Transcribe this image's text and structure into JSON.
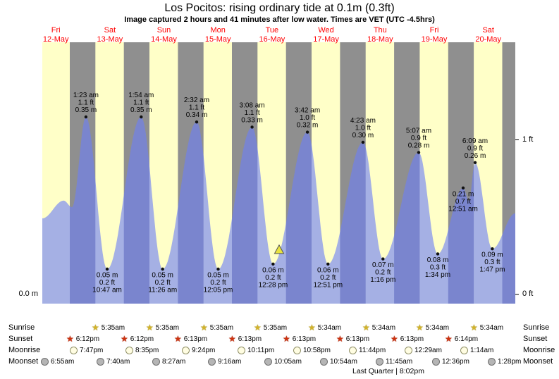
{
  "title": "Los Pocitos: rising  ordinary tide at 0.1m (0.3ft)",
  "subtitle": "Image captured 2 hours and 41 minutes after low water. Times are VET (UTC -4.5hrs)",
  "axis": {
    "left_zero_label": "0.0 m",
    "right_one_ft_label": "1 ft",
    "right_zero_ft_label": "0 ft"
  },
  "days": [
    {
      "name": "Fri",
      "date": "12-May"
    },
    {
      "name": "Sat",
      "date": "13-May"
    },
    {
      "name": "Sun",
      "date": "14-May"
    },
    {
      "name": "Mon",
      "date": "15-May"
    },
    {
      "name": "Tue",
      "date": "16-May"
    },
    {
      "name": "Wed",
      "date": "17-May"
    },
    {
      "name": "Thu",
      "date": "18-May"
    },
    {
      "name": "Fri",
      "date": "19-May"
    },
    {
      "name": "Sat",
      "date": "20-May"
    }
  ],
  "chart_data": {
    "type": "area",
    "title": "Los Pocitos tide height curve",
    "x_axis_days": [
      "Fri 12-May",
      "Sat 13-May",
      "Sun 14-May",
      "Mon 15-May",
      "Tue 16-May",
      "Wed 17-May",
      "Thu 18-May",
      "Fri 19-May",
      "Sat 20-May"
    ],
    "x_domain_hours": [
      6,
      216
    ],
    "y_domain_m": [
      0,
      0.5
    ],
    "y_ticks": [
      {
        "label": "1 ft",
        "m": 0.3048
      },
      {
        "label": "0 ft",
        "m": 0
      }
    ],
    "night_model": {
      "sunset_hour": 18.2,
      "sunrise_hour": 5.57
    },
    "tide_events": [
      {
        "day": "Sat 13-May",
        "kind": "high",
        "t": 25.383,
        "height_m": 0.35,
        "label_lines": [
          "1:23 am",
          "1.1 ft",
          "0.35 m"
        ],
        "label_pos": "above"
      },
      {
        "day": "Sat 13-May",
        "kind": "low",
        "t": 34.783,
        "height_m": 0.05,
        "label_lines": [
          "0.05 m",
          "0.2 ft",
          "10:47 am"
        ],
        "label_pos": "below"
      },
      {
        "day": "Sun 14-May",
        "kind": "high",
        "t": 49.9,
        "height_m": 0.35,
        "label_lines": [
          "1:54 am",
          "1.1 ft",
          "0.35 m"
        ],
        "label_pos": "above"
      },
      {
        "day": "Sun 14-May",
        "kind": "low",
        "t": 59.433,
        "height_m": 0.05,
        "label_lines": [
          "0.05 m",
          "0.2 ft",
          "11:26 am"
        ],
        "label_pos": "below"
      },
      {
        "day": "Mon 15-May",
        "kind": "high",
        "t": 74.533,
        "height_m": 0.34,
        "label_lines": [
          "2:32 am",
          "1.1 ft",
          "0.34 m"
        ],
        "label_pos": "above"
      },
      {
        "day": "Mon 15-May",
        "kind": "low",
        "t": 84.083,
        "height_m": 0.05,
        "label_lines": [
          "0.05 m",
          "0.2 ft",
          "12:05 pm"
        ],
        "label_pos": "below"
      },
      {
        "day": "Tue 16-May",
        "kind": "high",
        "t": 99.133,
        "height_m": 0.33,
        "label_lines": [
          "3:08 am",
          "1.1 ft",
          "0.33 m"
        ],
        "label_pos": "above"
      },
      {
        "day": "Tue 16-May",
        "kind": "low",
        "t": 108.467,
        "height_m": 0.06,
        "label_lines": [
          "0.06 m",
          "0.2 ft",
          "12:28 pm"
        ],
        "label_pos": "below"
      },
      {
        "day": "Wed 17-May",
        "kind": "high",
        "t": 123.7,
        "height_m": 0.32,
        "label_lines": [
          "3:42 am",
          "1.0 ft",
          "0.32 m"
        ],
        "label_pos": "above"
      },
      {
        "day": "Wed 17-May",
        "kind": "low",
        "t": 132.85,
        "height_m": 0.06,
        "label_lines": [
          "0.06 m",
          "0.2 ft",
          "12:51 pm"
        ],
        "label_pos": "below"
      },
      {
        "day": "Thu 18-May",
        "kind": "high",
        "t": 148.383,
        "height_m": 0.3,
        "label_lines": [
          "4:23 am",
          "1.0 ft",
          "0.30 m"
        ],
        "label_pos": "above"
      },
      {
        "day": "Thu 18-May",
        "kind": "low",
        "t": 157.267,
        "height_m": 0.07,
        "label_lines": [
          "0.07 m",
          "0.2 ft",
          "1:16 pm"
        ],
        "label_pos": "below"
      },
      {
        "day": "Fri 19-May",
        "kind": "high",
        "t": 173.117,
        "height_m": 0.28,
        "label_lines": [
          "5:07 am",
          "0.9 ft",
          "0.28 m"
        ],
        "label_pos": "above"
      },
      {
        "day": "Fri 19-May",
        "kind": "low",
        "t": 181.567,
        "height_m": 0.08,
        "label_lines": [
          "0.08 m",
          "0.3 ft",
          "1:34 pm"
        ],
        "label_pos": "below"
      },
      {
        "day": "Sat 20-May",
        "kind": "high",
        "t": 192.85,
        "height_m": 0.21,
        "label_lines": [
          "0.21 m",
          "0.7 ft",
          "12:51 am"
        ],
        "label_pos": "below"
      },
      {
        "day": "Sat 20-May",
        "kind": "high",
        "t": 198.15,
        "height_m": 0.26,
        "label_lines": [
          "6:09 am",
          "0.9 ft",
          "0.26 m"
        ],
        "label_pos": "above"
      },
      {
        "day": "Sat 20-May",
        "kind": "low",
        "t": 205.783,
        "height_m": 0.09,
        "label_lines": [
          "0.09 m",
          "0.3 ft",
          "1:47 pm"
        ],
        "label_pos": "below"
      }
    ],
    "curve_extremes": [
      {
        "t": 6,
        "h": 0.15
      },
      {
        "t": 15.5,
        "h": 0.185
      },
      {
        "t": 19.2,
        "h": 0.172
      },
      {
        "t": 25.383,
        "h": 0.35
      },
      {
        "t": 34.783,
        "h": 0.05
      },
      {
        "t": 49.9,
        "h": 0.35
      },
      {
        "t": 59.433,
        "h": 0.05
      },
      {
        "t": 74.533,
        "h": 0.34
      },
      {
        "t": 84.083,
        "h": 0.05
      },
      {
        "t": 99.133,
        "h": 0.33
      },
      {
        "t": 108.467,
        "h": 0.06
      },
      {
        "t": 123.7,
        "h": 0.32
      },
      {
        "t": 132.85,
        "h": 0.06
      },
      {
        "t": 148.383,
        "h": 0.3
      },
      {
        "t": 157.267,
        "h": 0.07
      },
      {
        "t": 173.117,
        "h": 0.28
      },
      {
        "t": 181.567,
        "h": 0.08
      },
      {
        "t": 192.85,
        "h": 0.21
      },
      {
        "t": 195.4,
        "h": 0.185
      },
      {
        "t": 198.15,
        "h": 0.26
      },
      {
        "t": 205.783,
        "h": 0.09
      },
      {
        "t": 216,
        "h": 0.16
      }
    ],
    "time_marker": {
      "t": 111.15,
      "shape": "triangle-up",
      "meaning": "time of image capture (2h 41m after low water)"
    }
  },
  "astro": {
    "left_labels": [
      "Sunrise",
      "Sunset",
      "Moonrise",
      "Moonset"
    ],
    "right_labels": [
      "Sunrise",
      "Sunset",
      "Moonrise",
      "Moonset"
    ],
    "sunrise": {
      "icon": "sunrise-star",
      "events": [
        {
          "time": "5:35am",
          "t": 29.583
        },
        {
          "time": "5:35am",
          "t": 53.583
        },
        {
          "time": "5:35am",
          "t": 77.583
        },
        {
          "time": "5:35am",
          "t": 101.583
        },
        {
          "time": "5:34am",
          "t": 125.567
        },
        {
          "time": "5:34am",
          "t": 149.567
        },
        {
          "time": "5:34am",
          "t": 173.567
        },
        {
          "time": "5:34am",
          "t": 197.567
        }
      ]
    },
    "sunset": {
      "icon": "sunset-star",
      "events": [
        {
          "time": "6:12pm",
          "t": 18.2
        },
        {
          "time": "6:12pm",
          "t": 42.2
        },
        {
          "time": "6:13pm",
          "t": 66.217
        },
        {
          "time": "6:13pm",
          "t": 90.217
        },
        {
          "time": "6:13pm",
          "t": 114.217
        },
        {
          "time": "6:13pm",
          "t": 138.217
        },
        {
          "time": "6:13pm",
          "t": 162.217
        },
        {
          "time": "6:14pm",
          "t": 186.233
        }
      ]
    },
    "moonrise": {
      "icon": "moonrise-circle",
      "events": [
        {
          "time": "7:47pm",
          "t": 19.783
        },
        {
          "time": "8:35pm",
          "t": 44.583
        },
        {
          "time": "9:24pm",
          "t": 69.4
        },
        {
          "time": "10:11pm",
          "t": 94.183
        },
        {
          "time": "10:58pm",
          "t": 118.967
        },
        {
          "time": "11:44pm",
          "t": 143.733
        },
        {
          "time": "12:29am",
          "t": 168.483
        },
        {
          "time": "1:14am",
          "t": 193.233
        }
      ]
    },
    "moonset": {
      "icon": "moonset-circle",
      "events": [
        {
          "time": "6:55am",
          "t": 6.917
        },
        {
          "time": "7:40am",
          "t": 31.667
        },
        {
          "time": "8:27am",
          "t": 56.45
        },
        {
          "time": "9:16am",
          "t": 81.267
        },
        {
          "time": "10:05am",
          "t": 106.083
        },
        {
          "time": "10:54am",
          "t": 130.9
        },
        {
          "time": "11:45am",
          "t": 155.75
        },
        {
          "time": "12:36pm",
          "t": 180.6
        },
        {
          "time": "1:28pm",
          "t": 205.467
        }
      ]
    },
    "footnote": "Last Quarter | 8:02pm"
  },
  "colors": {
    "day_bg": "#ffffc8",
    "night_bg": "#8f8f8f",
    "tide_fill": "rgba(110,128,245,0.62)",
    "date_label": "#ff0000",
    "marker_fill": "#e9e33f",
    "annotation_text": "#000000"
  }
}
